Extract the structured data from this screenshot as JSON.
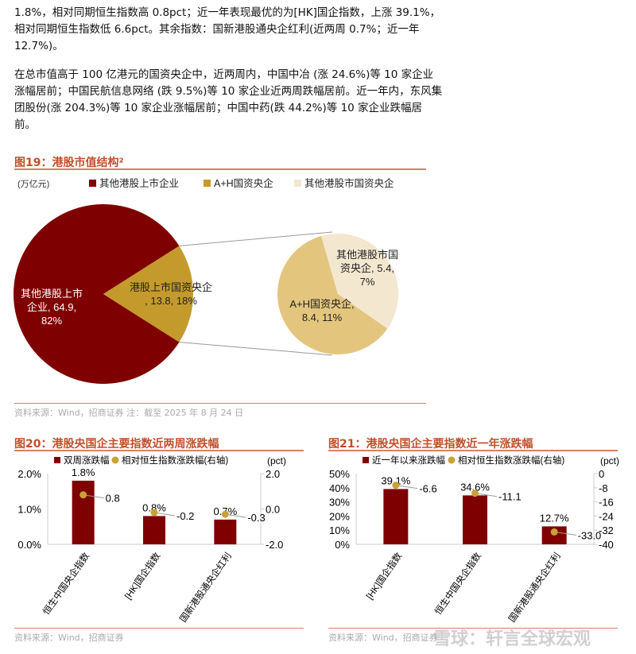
{
  "paragraphs": [
    "1.8%，相对同期恒生指数高 0.8pct；近一年表现最优的为[HK]国企指数，上涨 39.1%，相对同期恒生指数低 6.6pct。其余指数：国新港股通央企红利(近两周 0.7%；近一年 12.7%)。",
    "在总市值高于 100 亿港元的国资央企中，近两周内，中国中冶 (涨 24.6%)等 10 家企业涨幅居前；中国民航信息网络 (跌 9.5%)等 10 家企业近两周跌幅居前。近一年内，东风集团股份(涨 204.3%)等 10 家企业涨幅居前；中国中药(跌 44.2%)等 10 家企业跌幅居前。"
  ],
  "fig19": {
    "title": "图19：港股市值结构²",
    "source": "资料来源：Wind，招商证券   注：截至 2025 年 8 月 24 日"
  },
  "fig20": {
    "title": "图20：港股央国企主要指数近两周涨跌幅",
    "source": "资料来源：Wind，招商证券"
  },
  "fig21": {
    "title": "图21：港股央国企主要指数近一年涨跌幅",
    "source": "资料来源：Wind，招商证券"
  },
  "watermark": "雪球：轩言全球宏观",
  "colors": {
    "bar": "#7f0000",
    "dot": "#c9a236",
    "slice_gold": "#c49a2c",
    "slice_light": "#e3c57e",
    "slice_cream": "#f3e7cf",
    "accent": "#c0502a"
  },
  "chart_data": [
    {
      "type": "pie",
      "unit": "(万亿元)",
      "legend": [
        "其他港股上市企业",
        "A+H国资央企",
        "其他港股市国资央企"
      ],
      "slices": [
        {
          "label": "其他港股上市企业, 64.9, 82%",
          "value": 64.9,
          "pct": 82
        },
        {
          "label": "港股上市国资央企, 13.8, 18%",
          "value": 13.8,
          "pct": 18
        }
      ],
      "breakdown": [
        {
          "label": "A+H国资央企, 8.4, 11%",
          "value": 8.4,
          "pct": 11
        },
        {
          "label": "其他港股市国资央企, 5.4, 7%",
          "value": 5.4,
          "pct": 7
        }
      ]
    },
    {
      "type": "bar+scatter",
      "categories": [
        "恒生中国央企指数",
        "[HK]国企指数",
        "国新港股通央企红利"
      ],
      "series": [
        {
          "name": "双周涨跌幅",
          "values": [
            1.8,
            0.8,
            0.7
          ],
          "labels": [
            "1.8%",
            "0.8%",
            "0.7%"
          ]
        },
        {
          "name": "相对恒生指数涨跌幅(右轴)",
          "values": [
            0.8,
            -0.2,
            -0.3
          ],
          "labels": [
            "0.8",
            "-0.2",
            "-0.3"
          ]
        }
      ],
      "ylim": [
        0,
        2
      ],
      "yticks": [
        "0.0%",
        "1.0%",
        "2.0%"
      ],
      "y2lim": [
        -2,
        2
      ],
      "y2ticks": [
        "-2.0",
        "0.0",
        "2.0"
      ],
      "y2label": "(pct)"
    },
    {
      "type": "bar+scatter",
      "categories": [
        "[HK]国企指数",
        "恒生中国央企指数",
        "国新港股通央企红利"
      ],
      "series": [
        {
          "name": "近一年以来涨跌幅",
          "values": [
            39.1,
            34.6,
            12.7
          ],
          "labels": [
            "39.1%",
            "34.6%",
            "12.7%"
          ]
        },
        {
          "name": "相对恒生指数涨跌幅(右轴)",
          "values": [
            -6.6,
            -11.1,
            -33.0
          ],
          "labels": [
            "-6.6",
            "-11.1",
            "-33.0"
          ]
        }
      ],
      "ylim": [
        0,
        50
      ],
      "yticks": [
        "0%",
        "10%",
        "20%",
        "30%",
        "40%",
        "50%"
      ],
      "y2lim": [
        -40,
        0
      ],
      "y2ticks": [
        "-40",
        "-32",
        "-24",
        "-16",
        "-8",
        "0"
      ],
      "y2label": "(pct)"
    }
  ]
}
